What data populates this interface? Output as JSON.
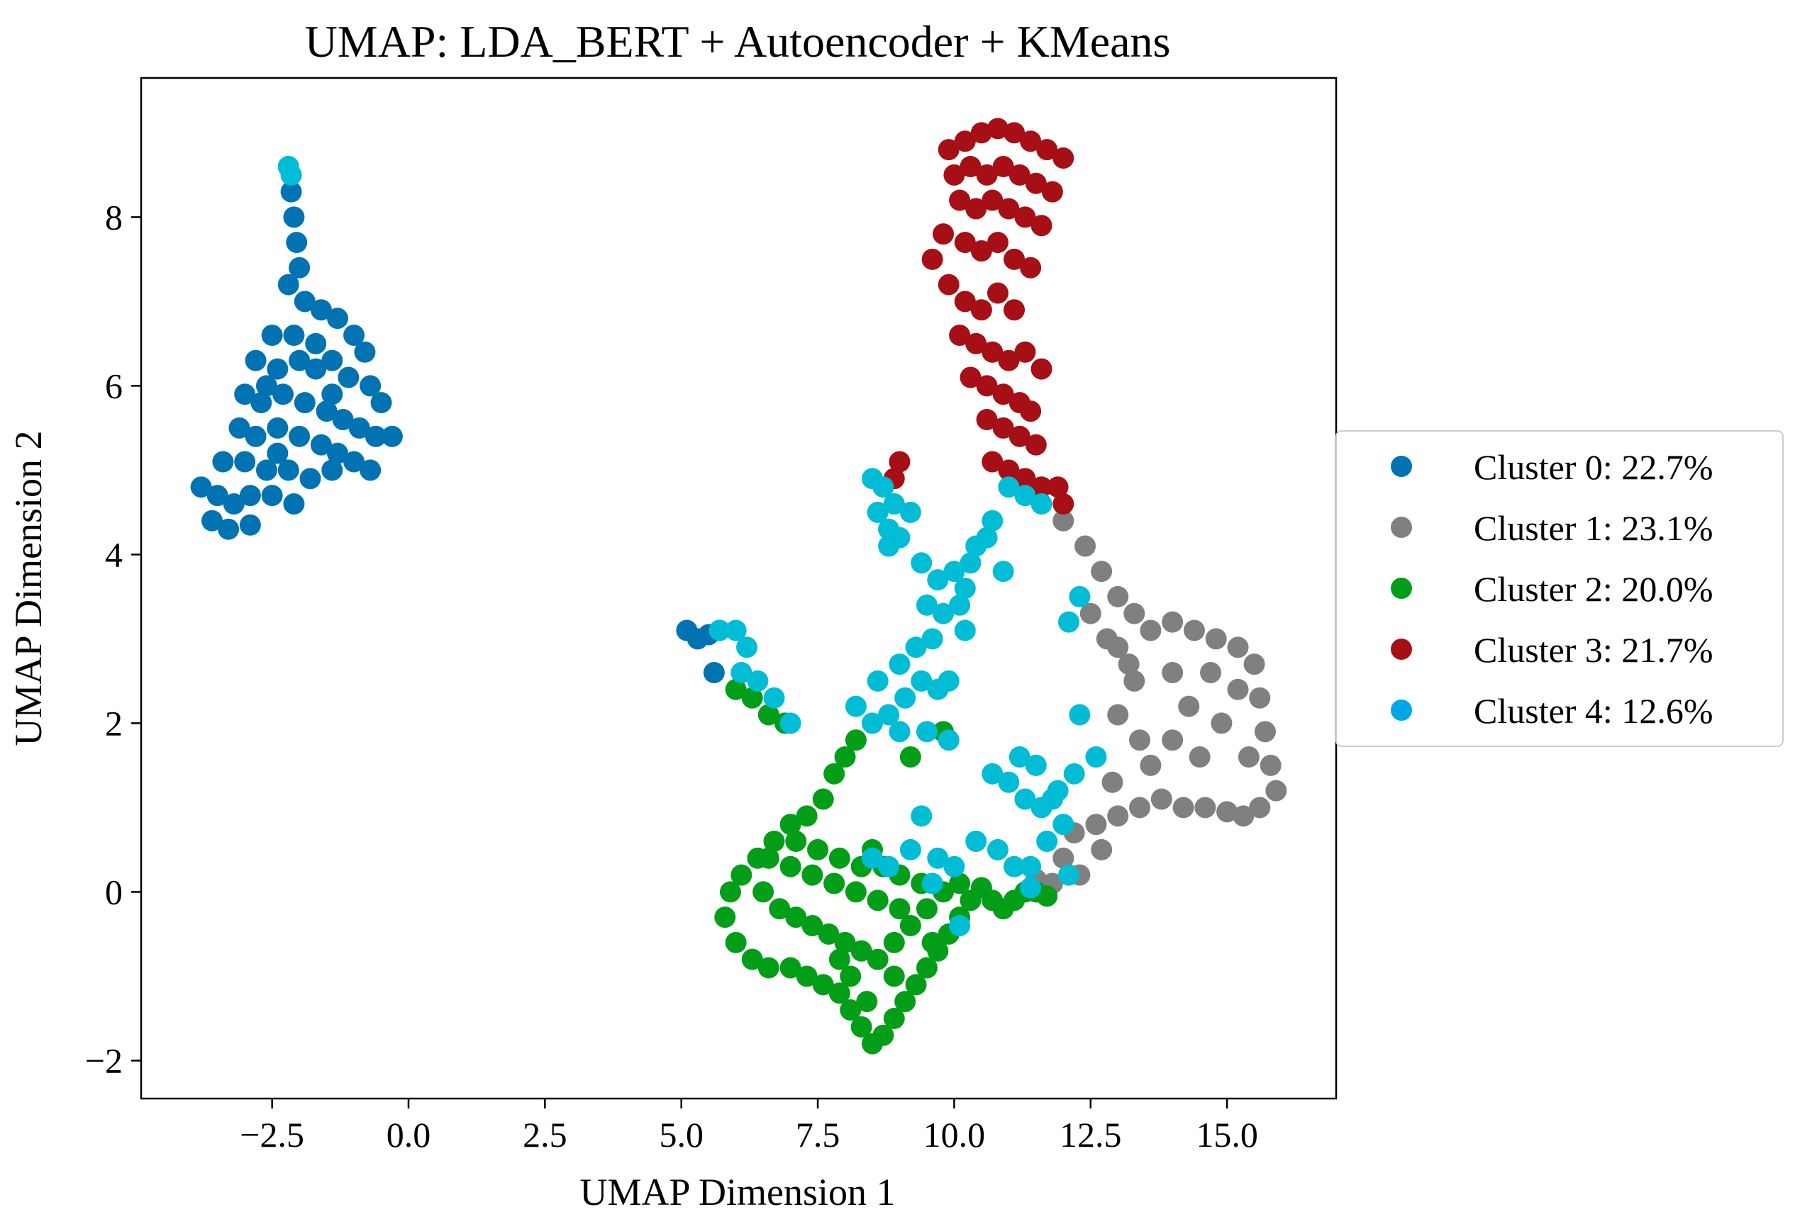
{
  "chart_data": {
    "type": "scatter",
    "title": "UMAP: LDA_BERT + Autoencoder + KMeans",
    "xlabel": "UMAP Dimension 1",
    "ylabel": "UMAP Dimension 2",
    "xlim": [
      -4.9,
      17.0
    ],
    "ylim": [
      -2.45,
      9.65
    ],
    "xticks": [
      -2.5,
      0.0,
      2.5,
      5.0,
      7.5,
      10.0,
      12.5,
      15.0
    ],
    "xtick_labels": [
      "−2.5",
      "0.0",
      "2.5",
      "5.0",
      "7.5",
      "10.0",
      "12.5",
      "15.0"
    ],
    "yticks": [
      -2,
      0,
      2,
      4,
      6,
      8
    ],
    "ytick_labels": [
      "−2",
      "0",
      "2",
      "4",
      "6",
      "8"
    ],
    "grid": false,
    "legend_position": "outside-right",
    "series": [
      {
        "name": "Cluster 0: 22.7%",
        "color": "#0173b2",
        "points": [
          [
            -2.2,
            8.6
          ],
          [
            -2.15,
            8.3
          ],
          [
            -2.1,
            8.0
          ],
          [
            -2.05,
            7.7
          ],
          [
            -2.0,
            7.4
          ],
          [
            -2.2,
            7.2
          ],
          [
            -1.9,
            7.0
          ],
          [
            -1.6,
            6.9
          ],
          [
            -1.3,
            6.8
          ],
          [
            -1.0,
            6.6
          ],
          [
            -0.8,
            6.4
          ],
          [
            -2.5,
            6.6
          ],
          [
            -2.8,
            6.3
          ],
          [
            -2.4,
            6.2
          ],
          [
            -2.0,
            6.3
          ],
          [
            -1.7,
            6.2
          ],
          [
            -1.4,
            6.3
          ],
          [
            -1.1,
            6.1
          ],
          [
            -0.7,
            6.0
          ],
          [
            -0.5,
            5.8
          ],
          [
            -3.0,
            5.9
          ],
          [
            -2.7,
            5.8
          ],
          [
            -2.3,
            5.9
          ],
          [
            -1.9,
            5.8
          ],
          [
            -1.5,
            5.7
          ],
          [
            -1.2,
            5.6
          ],
          [
            -0.9,
            5.5
          ],
          [
            -0.6,
            5.4
          ],
          [
            -0.3,
            5.4
          ],
          [
            -3.1,
            5.5
          ],
          [
            -2.8,
            5.4
          ],
          [
            -2.4,
            5.5
          ],
          [
            -2.0,
            5.4
          ],
          [
            -1.6,
            5.3
          ],
          [
            -1.3,
            5.2
          ],
          [
            -1.0,
            5.1
          ],
          [
            -0.7,
            5.0
          ],
          [
            -3.4,
            5.1
          ],
          [
            -3.0,
            5.1
          ],
          [
            -2.6,
            5.0
          ],
          [
            -2.2,
            5.0
          ],
          [
            -1.8,
            4.9
          ],
          [
            -1.4,
            5.0
          ],
          [
            -3.8,
            4.8
          ],
          [
            -3.5,
            4.7
          ],
          [
            -3.2,
            4.6
          ],
          [
            -2.9,
            4.7
          ],
          [
            -2.5,
            4.7
          ],
          [
            -2.1,
            4.6
          ],
          [
            -3.6,
            4.4
          ],
          [
            -3.3,
            4.3
          ],
          [
            -2.9,
            4.35
          ],
          [
            -2.6,
            6.0
          ],
          [
            -2.1,
            6.6
          ],
          [
            -1.7,
            6.5
          ],
          [
            -1.4,
            5.9
          ],
          [
            -2.4,
            5.2
          ],
          [
            5.1,
            3.1
          ],
          [
            5.3,
            3.0
          ],
          [
            5.5,
            3.05
          ],
          [
            5.7,
            3.1
          ],
          [
            5.6,
            2.6
          ]
        ]
      },
      {
        "name": "Cluster 1: 23.1%",
        "color": "#808080",
        "points": [
          [
            12.0,
            4.4
          ],
          [
            12.4,
            4.1
          ],
          [
            12.7,
            3.8
          ],
          [
            13.0,
            3.5
          ],
          [
            13.3,
            3.3
          ],
          [
            13.6,
            3.1
          ],
          [
            14.0,
            3.2
          ],
          [
            14.4,
            3.1
          ],
          [
            14.8,
            3.0
          ],
          [
            15.2,
            2.9
          ],
          [
            15.5,
            2.7
          ],
          [
            15.6,
            2.3
          ],
          [
            15.7,
            1.9
          ],
          [
            15.8,
            1.5
          ],
          [
            15.9,
            1.2
          ],
          [
            15.6,
            1.0
          ],
          [
            15.3,
            0.9
          ],
          [
            15.0,
            0.95
          ],
          [
            14.6,
            1.0
          ],
          [
            14.2,
            1.0
          ],
          [
            13.8,
            1.1
          ],
          [
            13.4,
            1.0
          ],
          [
            13.0,
            0.9
          ],
          [
            12.6,
            0.8
          ],
          [
            12.2,
            0.7
          ],
          [
            12.0,
            0.4
          ],
          [
            12.3,
            0.2
          ],
          [
            12.7,
            0.5
          ],
          [
            13.0,
            2.9
          ],
          [
            13.3,
            2.5
          ],
          [
            13.0,
            2.1
          ],
          [
            13.4,
            1.8
          ],
          [
            13.6,
            1.5
          ],
          [
            14.0,
            2.6
          ],
          [
            14.3,
            2.2
          ],
          [
            14.0,
            1.8
          ],
          [
            14.5,
            1.6
          ],
          [
            14.9,
            2.0
          ],
          [
            15.2,
            2.4
          ],
          [
            15.4,
            1.6
          ],
          [
            14.7,
            2.6
          ],
          [
            12.8,
            3.0
          ],
          [
            12.5,
            3.3
          ],
          [
            11.8,
            0.1
          ],
          [
            11.5,
            0.15
          ],
          [
            12.9,
            1.3
          ],
          [
            13.2,
            2.7
          ]
        ]
      },
      {
        "name": "Cluster 2: 20.0%",
        "color": "#029e18",
        "points": [
          [
            6.0,
            2.4
          ],
          [
            6.3,
            2.3
          ],
          [
            6.6,
            2.1
          ],
          [
            6.9,
            2.0
          ],
          [
            8.2,
            1.8
          ],
          [
            8.0,
            1.6
          ],
          [
            7.8,
            1.4
          ],
          [
            7.6,
            1.1
          ],
          [
            7.3,
            0.9
          ],
          [
            7.0,
            0.8
          ],
          [
            6.7,
            0.6
          ],
          [
            6.4,
            0.4
          ],
          [
            6.1,
            0.2
          ],
          [
            5.9,
            0.0
          ],
          [
            5.8,
            -0.3
          ],
          [
            6.0,
            -0.6
          ],
          [
            6.3,
            -0.8
          ],
          [
            6.6,
            -0.9
          ],
          [
            7.0,
            -0.9
          ],
          [
            7.3,
            -1.0
          ],
          [
            7.6,
            -1.1
          ],
          [
            7.9,
            -1.2
          ],
          [
            8.1,
            -1.4
          ],
          [
            8.3,
            -1.6
          ],
          [
            8.5,
            -1.8
          ],
          [
            8.7,
            -1.7
          ],
          [
            8.9,
            -1.5
          ],
          [
            9.1,
            -1.3
          ],
          [
            9.3,
            -1.1
          ],
          [
            9.5,
            -0.9
          ],
          [
            9.7,
            -0.7
          ],
          [
            9.9,
            -0.5
          ],
          [
            10.1,
            -0.3
          ],
          [
            10.3,
            -0.1
          ],
          [
            10.5,
            0.05
          ],
          [
            10.7,
            -0.1
          ],
          [
            10.9,
            -0.2
          ],
          [
            11.1,
            -0.1
          ],
          [
            11.3,
            0.0
          ],
          [
            11.5,
            0.0
          ],
          [
            11.7,
            -0.05
          ],
          [
            6.5,
            0.0
          ],
          [
            6.8,
            -0.2
          ],
          [
            7.1,
            -0.3
          ],
          [
            7.4,
            -0.4
          ],
          [
            7.7,
            -0.5
          ],
          [
            8.0,
            -0.6
          ],
          [
            8.3,
            -0.7
          ],
          [
            8.6,
            -0.8
          ],
          [
            8.9,
            -0.6
          ],
          [
            9.2,
            -0.4
          ],
          [
            9.5,
            -0.2
          ],
          [
            9.8,
            0.0
          ],
          [
            10.1,
            0.1
          ],
          [
            6.6,
            0.4
          ],
          [
            7.0,
            0.3
          ],
          [
            7.4,
            0.2
          ],
          [
            7.8,
            0.1
          ],
          [
            8.2,
            0.0
          ],
          [
            8.6,
            -0.1
          ],
          [
            9.0,
            -0.2
          ],
          [
            7.1,
            0.6
          ],
          [
            7.5,
            0.5
          ],
          [
            7.9,
            0.4
          ],
          [
            8.3,
            0.3
          ],
          [
            8.7,
            0.3
          ],
          [
            8.9,
            -1.0
          ],
          [
            8.4,
            -1.3
          ],
          [
            8.1,
            -1.0
          ],
          [
            7.9,
            -0.8
          ],
          [
            9.6,
            -0.6
          ],
          [
            9.4,
            0.1
          ],
          [
            9.0,
            0.2
          ],
          [
            8.5,
            0.5
          ],
          [
            9.8,
            1.9
          ],
          [
            9.2,
            1.6
          ]
        ]
      },
      {
        "name": "Cluster 3: 21.7%",
        "color": "#a50f15",
        "points": [
          [
            9.0,
            5.1
          ],
          [
            8.9,
            4.9
          ],
          [
            9.9,
            8.8
          ],
          [
            10.2,
            8.9
          ],
          [
            10.5,
            9.0
          ],
          [
            10.8,
            9.05
          ],
          [
            11.1,
            9.0
          ],
          [
            11.4,
            8.9
          ],
          [
            11.7,
            8.8
          ],
          [
            12.0,
            8.7
          ],
          [
            10.0,
            8.5
          ],
          [
            10.3,
            8.6
          ],
          [
            10.6,
            8.5
          ],
          [
            10.9,
            8.6
          ],
          [
            11.2,
            8.5
          ],
          [
            11.5,
            8.4
          ],
          [
            11.8,
            8.3
          ],
          [
            10.1,
            8.2
          ],
          [
            10.4,
            8.1
          ],
          [
            10.7,
            8.2
          ],
          [
            11.0,
            8.1
          ],
          [
            11.3,
            8.0
          ],
          [
            11.6,
            7.9
          ],
          [
            9.8,
            7.8
          ],
          [
            10.2,
            7.7
          ],
          [
            10.5,
            7.6
          ],
          [
            10.8,
            7.7
          ],
          [
            11.1,
            7.5
          ],
          [
            11.4,
            7.4
          ],
          [
            9.6,
            7.5
          ],
          [
            9.9,
            7.2
          ],
          [
            10.2,
            7.0
          ],
          [
            10.5,
            6.9
          ],
          [
            10.8,
            7.1
          ],
          [
            11.1,
            6.9
          ],
          [
            10.1,
            6.6
          ],
          [
            10.4,
            6.5
          ],
          [
            10.7,
            6.4
          ],
          [
            11.0,
            6.3
          ],
          [
            11.3,
            6.4
          ],
          [
            10.3,
            6.1
          ],
          [
            10.6,
            6.0
          ],
          [
            10.9,
            5.9
          ],
          [
            11.2,
            5.8
          ],
          [
            10.6,
            5.6
          ],
          [
            10.9,
            5.5
          ],
          [
            11.2,
            5.4
          ],
          [
            11.5,
            5.3
          ],
          [
            10.7,
            5.1
          ],
          [
            11.0,
            5.0
          ],
          [
            11.3,
            4.9
          ],
          [
            11.6,
            4.8
          ],
          [
            11.9,
            4.8
          ],
          [
            12.0,
            4.6
          ],
          [
            11.4,
            5.7
          ],
          [
            11.6,
            6.2
          ]
        ]
      },
      {
        "name": "Cluster 4: 12.6%",
        "color": "#00bcd4",
        "points": [
          [
            -2.2,
            8.6
          ],
          [
            -2.15,
            8.5
          ],
          [
            8.5,
            4.9
          ],
          [
            8.7,
            4.8
          ],
          [
            8.9,
            4.6
          ],
          [
            8.6,
            4.5
          ],
          [
            8.8,
            4.3
          ],
          [
            9.2,
            4.5
          ],
          [
            9.0,
            4.2
          ],
          [
            8.8,
            4.1
          ],
          [
            9.4,
            3.9
          ],
          [
            9.7,
            3.7
          ],
          [
            10.0,
            3.8
          ],
          [
            10.3,
            3.9
          ],
          [
            9.5,
            3.4
          ],
          [
            9.8,
            3.3
          ],
          [
            10.1,
            3.4
          ],
          [
            9.6,
            3.0
          ],
          [
            9.3,
            2.9
          ],
          [
            9.0,
            2.7
          ],
          [
            9.4,
            2.5
          ],
          [
            9.7,
            2.4
          ],
          [
            9.1,
            2.3
          ],
          [
            8.8,
            2.1
          ],
          [
            8.5,
            2.0
          ],
          [
            8.2,
            2.2
          ],
          [
            8.6,
            2.5
          ],
          [
            9.0,
            1.9
          ],
          [
            9.5,
            1.9
          ],
          [
            9.9,
            1.8
          ],
          [
            10.2,
            3.6
          ],
          [
            10.4,
            4.1
          ],
          [
            10.7,
            4.4
          ],
          [
            11.0,
            4.8
          ],
          [
            11.3,
            4.7
          ],
          [
            11.6,
            4.6
          ],
          [
            10.6,
            4.2
          ],
          [
            10.9,
            3.8
          ],
          [
            12.3,
            3.5
          ],
          [
            12.1,
            3.2
          ],
          [
            12.3,
            2.1
          ],
          [
            12.6,
            1.6
          ],
          [
            12.2,
            1.4
          ],
          [
            11.9,
            1.2
          ],
          [
            11.6,
            1.0
          ],
          [
            11.3,
            1.1
          ],
          [
            11.0,
            1.3
          ],
          [
            10.7,
            1.4
          ],
          [
            11.2,
            1.6
          ],
          [
            11.5,
            1.5
          ],
          [
            11.8,
            1.1
          ],
          [
            12.0,
            0.8
          ],
          [
            11.7,
            0.6
          ],
          [
            11.4,
            0.3
          ],
          [
            11.1,
            0.3
          ],
          [
            10.8,
            0.5
          ],
          [
            10.4,
            0.6
          ],
          [
            10.0,
            0.3
          ],
          [
            9.7,
            0.4
          ],
          [
            9.4,
            0.9
          ],
          [
            9.2,
            0.5
          ],
          [
            9.6,
            0.1
          ],
          [
            10.1,
            -0.4
          ],
          [
            11.4,
            0.05
          ],
          [
            12.1,
            0.2
          ],
          [
            5.7,
            3.1
          ],
          [
            6.0,
            3.1
          ],
          [
            6.2,
            2.9
          ],
          [
            6.1,
            2.6
          ],
          [
            6.4,
            2.5
          ],
          [
            6.7,
            2.3
          ],
          [
            7.0,
            2.0
          ],
          [
            8.5,
            0.4
          ],
          [
            8.8,
            0.3
          ],
          [
            9.9,
            2.5
          ],
          [
            10.2,
            3.1
          ]
        ]
      }
    ]
  }
}
